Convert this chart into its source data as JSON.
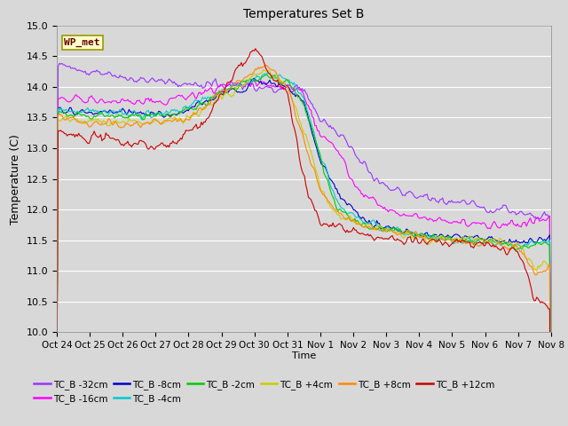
{
  "title": "Temperatures Set B",
  "xlabel": "Time",
  "ylabel": "Temperature (C)",
  "ylim": [
    10.0,
    15.0
  ],
  "yticks": [
    10.0,
    10.5,
    11.0,
    11.5,
    12.0,
    12.5,
    13.0,
    13.5,
    14.0,
    14.5,
    15.0
  ],
  "xtick_labels": [
    "Oct 24",
    "Oct 25",
    "Oct 26",
    "Oct 27",
    "Oct 28",
    "Oct 29",
    "Oct 30",
    "Oct 31",
    "Nov 1",
    "Nov 2",
    "Nov 3",
    "Nov 4",
    "Nov 5",
    "Nov 6",
    "Nov 7",
    "Nov 8"
  ],
  "wp_met_label": "WP_met",
  "series_colors": {
    "TC_B -32cm": "#9933ff",
    "TC_B -16cm": "#ff00ff",
    "TC_B -8cm": "#0000cc",
    "TC_B -4cm": "#00cccc",
    "TC_B -2cm": "#00cc00",
    "TC_B +4cm": "#cccc00",
    "TC_B +8cm": "#ff8800",
    "TC_B +12cm": "#cc0000"
  },
  "series_order": [
    "TC_B -32cm",
    "TC_B -16cm",
    "TC_B -8cm",
    "TC_B -4cm",
    "TC_B -2cm",
    "TC_B +4cm",
    "TC_B +8cm",
    "TC_B +12cm"
  ],
  "background_color": "#d8d8d8",
  "plot_bg_color": "#d8d8d8",
  "grid_color": "#ffffff",
  "figsize": [
    6.4,
    4.8
  ],
  "dpi": 100
}
